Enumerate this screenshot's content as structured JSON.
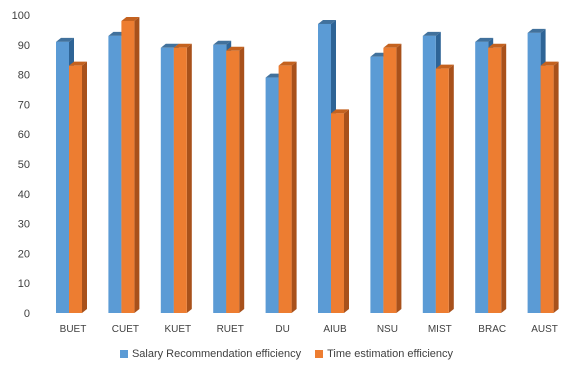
{
  "chart_data": {
    "type": "bar",
    "style": "3d-clustered-column",
    "categories": [
      "BUET",
      "CUET",
      "KUET",
      "RUET",
      "DU",
      "AIUB",
      "NSU",
      "MIST",
      "BRAC",
      "AUST"
    ],
    "series": [
      {
        "name": "Salary Recommendation efficiency",
        "color": "#5B9BD5",
        "side_color": "#2E6496",
        "top_color": "#41719C",
        "values": [
          91,
          93,
          89,
          90,
          79,
          97,
          86,
          93,
          91,
          94
        ]
      },
      {
        "name": "Time estimation efficiency",
        "color": "#ED7D31",
        "side_color": "#A8511B",
        "top_color": "#C4621F",
        "values": [
          83,
          98,
          89,
          88,
          83,
          67,
          89,
          82,
          89,
          83
        ]
      }
    ],
    "ylim": [
      0,
      100
    ],
    "yticks": [
      0,
      10,
      20,
      30,
      40,
      50,
      60,
      70,
      80,
      90,
      100
    ],
    "grid": false,
    "legend_position": "bottom"
  }
}
